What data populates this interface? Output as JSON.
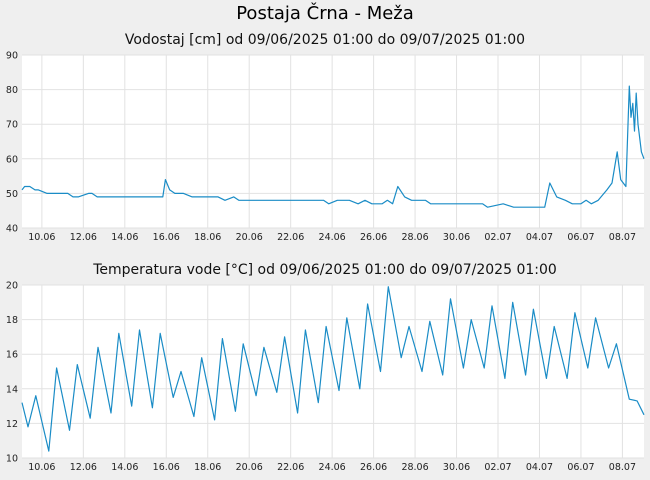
{
  "title": "Postaja Črna - Meža",
  "chart_data": [
    {
      "type": "line",
      "title": "Vodostaj [cm] od 09/06/2025 01:00 do 09/07/2025 01:00",
      "xlabel": "",
      "ylabel": "",
      "ylim": [
        40,
        90
      ],
      "yticks": [
        "40",
        "50",
        "60",
        "70",
        "80",
        "90"
      ],
      "xlim": [
        "2025-06-09 01:00",
        "2025-07-09 01:00"
      ],
      "xticks": [
        "10.06",
        "12.06",
        "14.06",
        "16.06",
        "18.06",
        "20.06",
        "22.06",
        "24.06",
        "26.06",
        "28.06",
        "30.06",
        "02.07",
        "04.07",
        "06.07",
        "08.07"
      ],
      "grid": true,
      "color": "#1a8cc6",
      "series": [
        {
          "x": [
            "2025-06-09 01:00",
            "2025-06-09 04:00",
            "2025-06-09 10:00",
            "2025-06-09 16:00",
            "2025-06-09 20:00",
            "2025-06-10 06:00",
            "2025-06-10 12:00",
            "2025-06-11 06:00",
            "2025-06-11 12:00",
            "2025-06-11 18:00",
            "2025-06-12 06:00",
            "2025-06-12 10:00",
            "2025-06-12 16:00",
            "2025-06-13 06:00",
            "2025-06-14 12:00",
            "2025-06-15 12:00",
            "2025-06-15 20:00",
            "2025-06-15 23:00",
            "2025-06-16 04:00",
            "2025-06-16 10:00",
            "2025-06-16 20:00",
            "2025-06-17 06:00",
            "2025-06-18 00:00",
            "2025-06-18 12:00",
            "2025-06-18 20:00",
            "2025-06-19 06:00",
            "2025-06-19 12:00",
            "2025-06-20 12:00",
            "2025-06-22 00:00",
            "2025-06-23 06:00",
            "2025-06-23 14:00",
            "2025-06-23 20:00",
            "2025-06-24 06:00",
            "2025-06-24 20:00",
            "2025-06-25 06:00",
            "2025-06-25 14:00",
            "2025-06-25 22:00",
            "2025-06-26 10:00",
            "2025-06-26 16:00",
            "2025-06-26 22:00",
            "2025-06-27 04:00",
            "2025-06-27 12:00",
            "2025-06-27 20:00",
            "2025-06-28 12:00",
            "2025-06-28 18:00",
            "2025-06-29 00:00",
            "2025-06-30 00:00",
            "2025-07-01 06:00",
            "2025-07-01 12:00",
            "2025-07-02 06:00",
            "2025-07-02 18:00",
            "2025-07-03 06:00",
            "2025-07-04 00:00",
            "2025-07-04 06:00",
            "2025-07-04 12:00",
            "2025-07-04 20:00",
            "2025-07-05 06:00",
            "2025-07-05 14:00",
            "2025-07-06 00:00",
            "2025-07-06 06:00",
            "2025-07-06 12:00",
            "2025-07-06 20:00",
            "2025-07-07 06:00",
            "2025-07-07 12:00",
            "2025-07-07 18:00",
            "2025-07-07 22:00",
            "2025-07-08 04:00",
            "2025-07-08 08:00",
            "2025-07-08 10:00",
            "2025-07-08 12:00",
            "2025-07-08 14:00",
            "2025-07-08 16:00",
            "2025-07-08 18:00",
            "2025-07-08 20:00",
            "2025-07-08 22:00",
            "2025-07-09 01:00"
          ],
          "values": [
            51,
            52,
            52,
            51,
            51,
            50,
            50,
            50,
            49,
            49,
            50,
            50,
            49,
            49,
            49,
            49,
            49,
            54,
            51,
            50,
            50,
            49,
            49,
            49,
            48,
            49,
            48,
            48,
            48,
            48,
            48,
            47,
            48,
            48,
            47,
            48,
            47,
            47,
            48,
            47,
            52,
            49,
            48,
            48,
            47,
            47,
            47,
            47,
            46,
            47,
            46,
            46,
            46,
            46,
            53,
            49,
            48,
            47,
            47,
            48,
            47,
            48,
            51,
            53,
            62,
            54,
            52,
            81,
            72,
            76,
            68,
            79,
            70,
            66,
            62,
            60
          ]
        }
      ]
    },
    {
      "type": "line",
      "title": "Temperatura vode [°C] od 09/06/2025 01:00 do 09/07/2025 01:00",
      "xlabel": "",
      "ylabel": "",
      "ylim": [
        10,
        20
      ],
      "yticks": [
        "10",
        "12",
        "14",
        "16",
        "18",
        "20"
      ],
      "xlim": [
        "2025-06-09 01:00",
        "2025-07-09 01:00"
      ],
      "xticks": [
        "10.06",
        "12.06",
        "14.06",
        "16.06",
        "18.06",
        "20.06",
        "22.06",
        "24.06",
        "26.06",
        "28.06",
        "30.06",
        "02.07",
        "04.07",
        "06.07",
        "08.07"
      ],
      "grid": true,
      "color": "#1a8cc6",
      "series": [
        {
          "x": [
            "2025-06-09 01:00",
            "2025-06-09 08:00",
            "2025-06-09 17:00",
            "2025-06-10 08:00",
            "2025-06-10 17:00",
            "2025-06-11 08:00",
            "2025-06-11 17:00",
            "2025-06-12 08:00",
            "2025-06-12 17:00",
            "2025-06-13 08:00",
            "2025-06-13 17:00",
            "2025-06-14 08:00",
            "2025-06-14 17:00",
            "2025-06-15 08:00",
            "2025-06-15 17:00",
            "2025-06-16 08:00",
            "2025-06-16 17:00",
            "2025-06-17 08:00",
            "2025-06-17 17:00",
            "2025-06-18 08:00",
            "2025-06-18 17:00",
            "2025-06-19 08:00",
            "2025-06-19 17:00",
            "2025-06-20 08:00",
            "2025-06-20 17:00",
            "2025-06-21 08:00",
            "2025-06-21 17:00",
            "2025-06-22 08:00",
            "2025-06-22 17:00",
            "2025-06-23 08:00",
            "2025-06-23 17:00",
            "2025-06-24 08:00",
            "2025-06-24 17:00",
            "2025-06-25 08:00",
            "2025-06-25 17:00",
            "2025-06-26 08:00",
            "2025-06-26 17:00",
            "2025-06-27 08:00",
            "2025-06-27 17:00",
            "2025-06-28 08:00",
            "2025-06-28 17:00",
            "2025-06-29 08:00",
            "2025-06-29 17:00",
            "2025-06-30 08:00",
            "2025-06-30 17:00",
            "2025-07-01 08:00",
            "2025-07-01 17:00",
            "2025-07-02 08:00",
            "2025-07-02 17:00",
            "2025-07-03 08:00",
            "2025-07-03 17:00",
            "2025-07-04 08:00",
            "2025-07-04 17:00",
            "2025-07-05 08:00",
            "2025-07-05 17:00",
            "2025-07-06 08:00",
            "2025-07-06 17:00",
            "2025-07-07 08:00",
            "2025-07-07 17:00",
            "2025-07-08 08:00",
            "2025-07-08 17:00",
            "2025-07-09 01:00"
          ],
          "values": [
            13.2,
            11.8,
            13.6,
            10.4,
            15.2,
            11.6,
            15.4,
            12.3,
            16.4,
            12.6,
            17.2,
            13.0,
            17.4,
            12.9,
            17.2,
            13.5,
            15.0,
            12.4,
            15.8,
            12.2,
            16.9,
            12.7,
            16.6,
            13.6,
            16.4,
            13.8,
            17.0,
            12.6,
            17.4,
            13.2,
            17.6,
            13.9,
            18.1,
            14.0,
            18.9,
            15.0,
            19.9,
            15.8,
            17.6,
            15.0,
            17.9,
            14.8,
            19.2,
            15.2,
            18.0,
            15.2,
            18.8,
            14.6,
            19.0,
            14.8,
            18.6,
            14.6,
            17.6,
            14.6,
            18.4,
            15.2,
            18.1,
            15.2,
            16.6,
            13.4,
            13.3,
            12.5
          ]
        }
      ]
    }
  ]
}
